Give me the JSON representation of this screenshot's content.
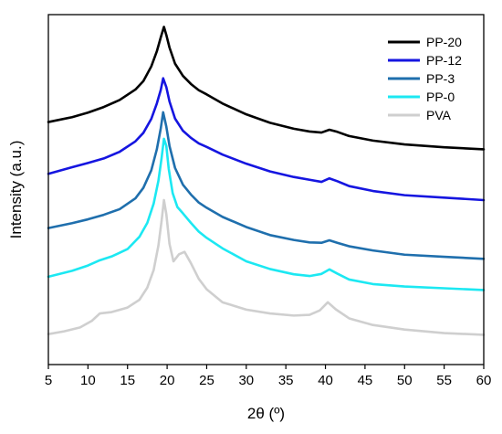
{
  "chart_data": {
    "type": "line",
    "xlabel": "2θ (º)",
    "ylabel": "Intensity (a.u.)",
    "xlim": [
      5,
      60
    ],
    "xticks": [
      5,
      10,
      15,
      20,
      25,
      30,
      35,
      40,
      45,
      50,
      55,
      60
    ],
    "ylim": [
      0,
      100
    ],
    "y_ticks_labeled": false,
    "grid": false,
    "legend_position": "top-right",
    "series": [
      {
        "name": "PP-20",
        "color": "#000000",
        "points": [
          [
            5,
            69.3
          ],
          [
            8,
            70.7
          ],
          [
            10,
            72.0
          ],
          [
            12,
            73.6
          ],
          [
            14,
            75.6
          ],
          [
            16,
            78.6
          ],
          [
            17,
            81.0
          ],
          [
            18,
            85.2
          ],
          [
            18.7,
            89.5
          ],
          [
            19.2,
            93.5
          ],
          [
            19.6,
            96.5
          ],
          [
            19.9,
            94.2
          ],
          [
            20.3,
            90.6
          ],
          [
            21,
            86.0
          ],
          [
            22,
            82.5
          ],
          [
            23,
            80.2
          ],
          [
            24,
            78.4
          ],
          [
            25,
            77.2
          ],
          [
            27,
            74.6
          ],
          [
            30,
            71.5
          ],
          [
            33,
            69.1
          ],
          [
            36,
            67.4
          ],
          [
            38,
            66.6
          ],
          [
            39.5,
            66.3
          ],
          [
            40.5,
            67.1
          ],
          [
            41.5,
            66.5
          ],
          [
            43,
            65.3
          ],
          [
            46,
            64.0
          ],
          [
            50,
            62.9
          ],
          [
            55,
            62.1
          ],
          [
            60,
            61.5
          ]
        ]
      },
      {
        "name": "PP-12",
        "color": "#1515e0",
        "points": [
          [
            5,
            54.5
          ],
          [
            8,
            56.4
          ],
          [
            10,
            57.6
          ],
          [
            12,
            58.9
          ],
          [
            14,
            60.8
          ],
          [
            16,
            63.8
          ],
          [
            17,
            66.2
          ],
          [
            18,
            70.2
          ],
          [
            18.7,
            74.6
          ],
          [
            19.2,
            78.5
          ],
          [
            19.5,
            81.8
          ],
          [
            19.9,
            79.3
          ],
          [
            20.3,
            75.2
          ],
          [
            21,
            70.3
          ],
          [
            22,
            66.8
          ],
          [
            23,
            64.8
          ],
          [
            24,
            63.2
          ],
          [
            25,
            62.2
          ],
          [
            27,
            60.0
          ],
          [
            30,
            57.4
          ],
          [
            33,
            55.2
          ],
          [
            36,
            53.6
          ],
          [
            38,
            52.8
          ],
          [
            39.5,
            52.2
          ],
          [
            40.5,
            53.2
          ],
          [
            41.5,
            52.4
          ],
          [
            43,
            51.0
          ],
          [
            46,
            49.6
          ],
          [
            50,
            48.4
          ],
          [
            55,
            47.7
          ],
          [
            60,
            47.0
          ]
        ]
      },
      {
        "name": "PP-3",
        "color": "#1f6fad",
        "points": [
          [
            5,
            39.0
          ],
          [
            8,
            40.4
          ],
          [
            10,
            41.5
          ],
          [
            12,
            42.8
          ],
          [
            14,
            44.4
          ],
          [
            16,
            47.5
          ],
          [
            17,
            50.5
          ],
          [
            18,
            55.5
          ],
          [
            18.7,
            61.5
          ],
          [
            19.2,
            67.5
          ],
          [
            19.5,
            72.1
          ],
          [
            19.9,
            68.0
          ],
          [
            20.3,
            62.5
          ],
          [
            21,
            56.2
          ],
          [
            22,
            51.4
          ],
          [
            23,
            48.6
          ],
          [
            24,
            46.3
          ],
          [
            25,
            44.8
          ],
          [
            27,
            42.2
          ],
          [
            30,
            39.3
          ],
          [
            33,
            37.0
          ],
          [
            36,
            35.6
          ],
          [
            38,
            34.9
          ],
          [
            39.5,
            34.8
          ],
          [
            40.5,
            35.5
          ],
          [
            41.5,
            34.8
          ],
          [
            43,
            33.8
          ],
          [
            46,
            32.6
          ],
          [
            50,
            31.4
          ],
          [
            55,
            30.8
          ],
          [
            60,
            30.2
          ]
        ]
      },
      {
        "name": "PP-0",
        "color": "#1ce8f2",
        "points": [
          [
            5,
            25.1
          ],
          [
            8,
            26.8
          ],
          [
            10,
            28.3
          ],
          [
            11.5,
            29.8
          ],
          [
            13,
            30.9
          ],
          [
            15,
            33.0
          ],
          [
            16.5,
            36.5
          ],
          [
            17.5,
            40.5
          ],
          [
            18.3,
            46.0
          ],
          [
            18.9,
            52.5
          ],
          [
            19.3,
            59.0
          ],
          [
            19.6,
            64.5
          ],
          [
            19.9,
            62.5
          ],
          [
            20.2,
            56.0
          ],
          [
            20.7,
            49.0
          ],
          [
            21.3,
            45.0
          ],
          [
            22,
            43.2
          ],
          [
            23,
            40.5
          ],
          [
            24,
            38.0
          ],
          [
            25,
            36.2
          ],
          [
            27,
            33.2
          ],
          [
            30,
            29.5
          ],
          [
            33,
            27.3
          ],
          [
            36,
            25.8
          ],
          [
            38,
            25.3
          ],
          [
            39.5,
            25.9
          ],
          [
            40.5,
            27.2
          ],
          [
            41.5,
            26.0
          ],
          [
            43,
            24.3
          ],
          [
            46,
            23.0
          ],
          [
            50,
            22.3
          ],
          [
            55,
            21.8
          ],
          [
            60,
            21.3
          ]
        ]
      },
      {
        "name": "PVA",
        "color": "#cfcfcf",
        "points": [
          [
            5,
            8.7
          ],
          [
            7,
            9.5
          ],
          [
            9,
            10.6
          ],
          [
            10.5,
            12.5
          ],
          [
            11.5,
            14.6
          ],
          [
            13,
            15.0
          ],
          [
            15,
            16.3
          ],
          [
            16.5,
            18.5
          ],
          [
            17.5,
            22.0
          ],
          [
            18.3,
            27.0
          ],
          [
            18.9,
            34.0
          ],
          [
            19.3,
            41.0
          ],
          [
            19.6,
            47.0
          ],
          [
            19.9,
            43.0
          ],
          [
            20.3,
            34.5
          ],
          [
            20.8,
            29.5
          ],
          [
            21.5,
            31.5
          ],
          [
            22.2,
            32.2
          ],
          [
            23,
            29.0
          ],
          [
            24,
            24.5
          ],
          [
            25,
            21.5
          ],
          [
            27,
            17.8
          ],
          [
            30,
            15.7
          ],
          [
            33,
            14.6
          ],
          [
            36,
            14.0
          ],
          [
            38,
            14.2
          ],
          [
            39.3,
            15.5
          ],
          [
            40.3,
            17.8
          ],
          [
            41.3,
            15.8
          ],
          [
            43,
            13.2
          ],
          [
            46,
            11.3
          ],
          [
            50,
            10.0
          ],
          [
            55,
            9.0
          ],
          [
            60,
            8.5
          ]
        ]
      }
    ]
  }
}
